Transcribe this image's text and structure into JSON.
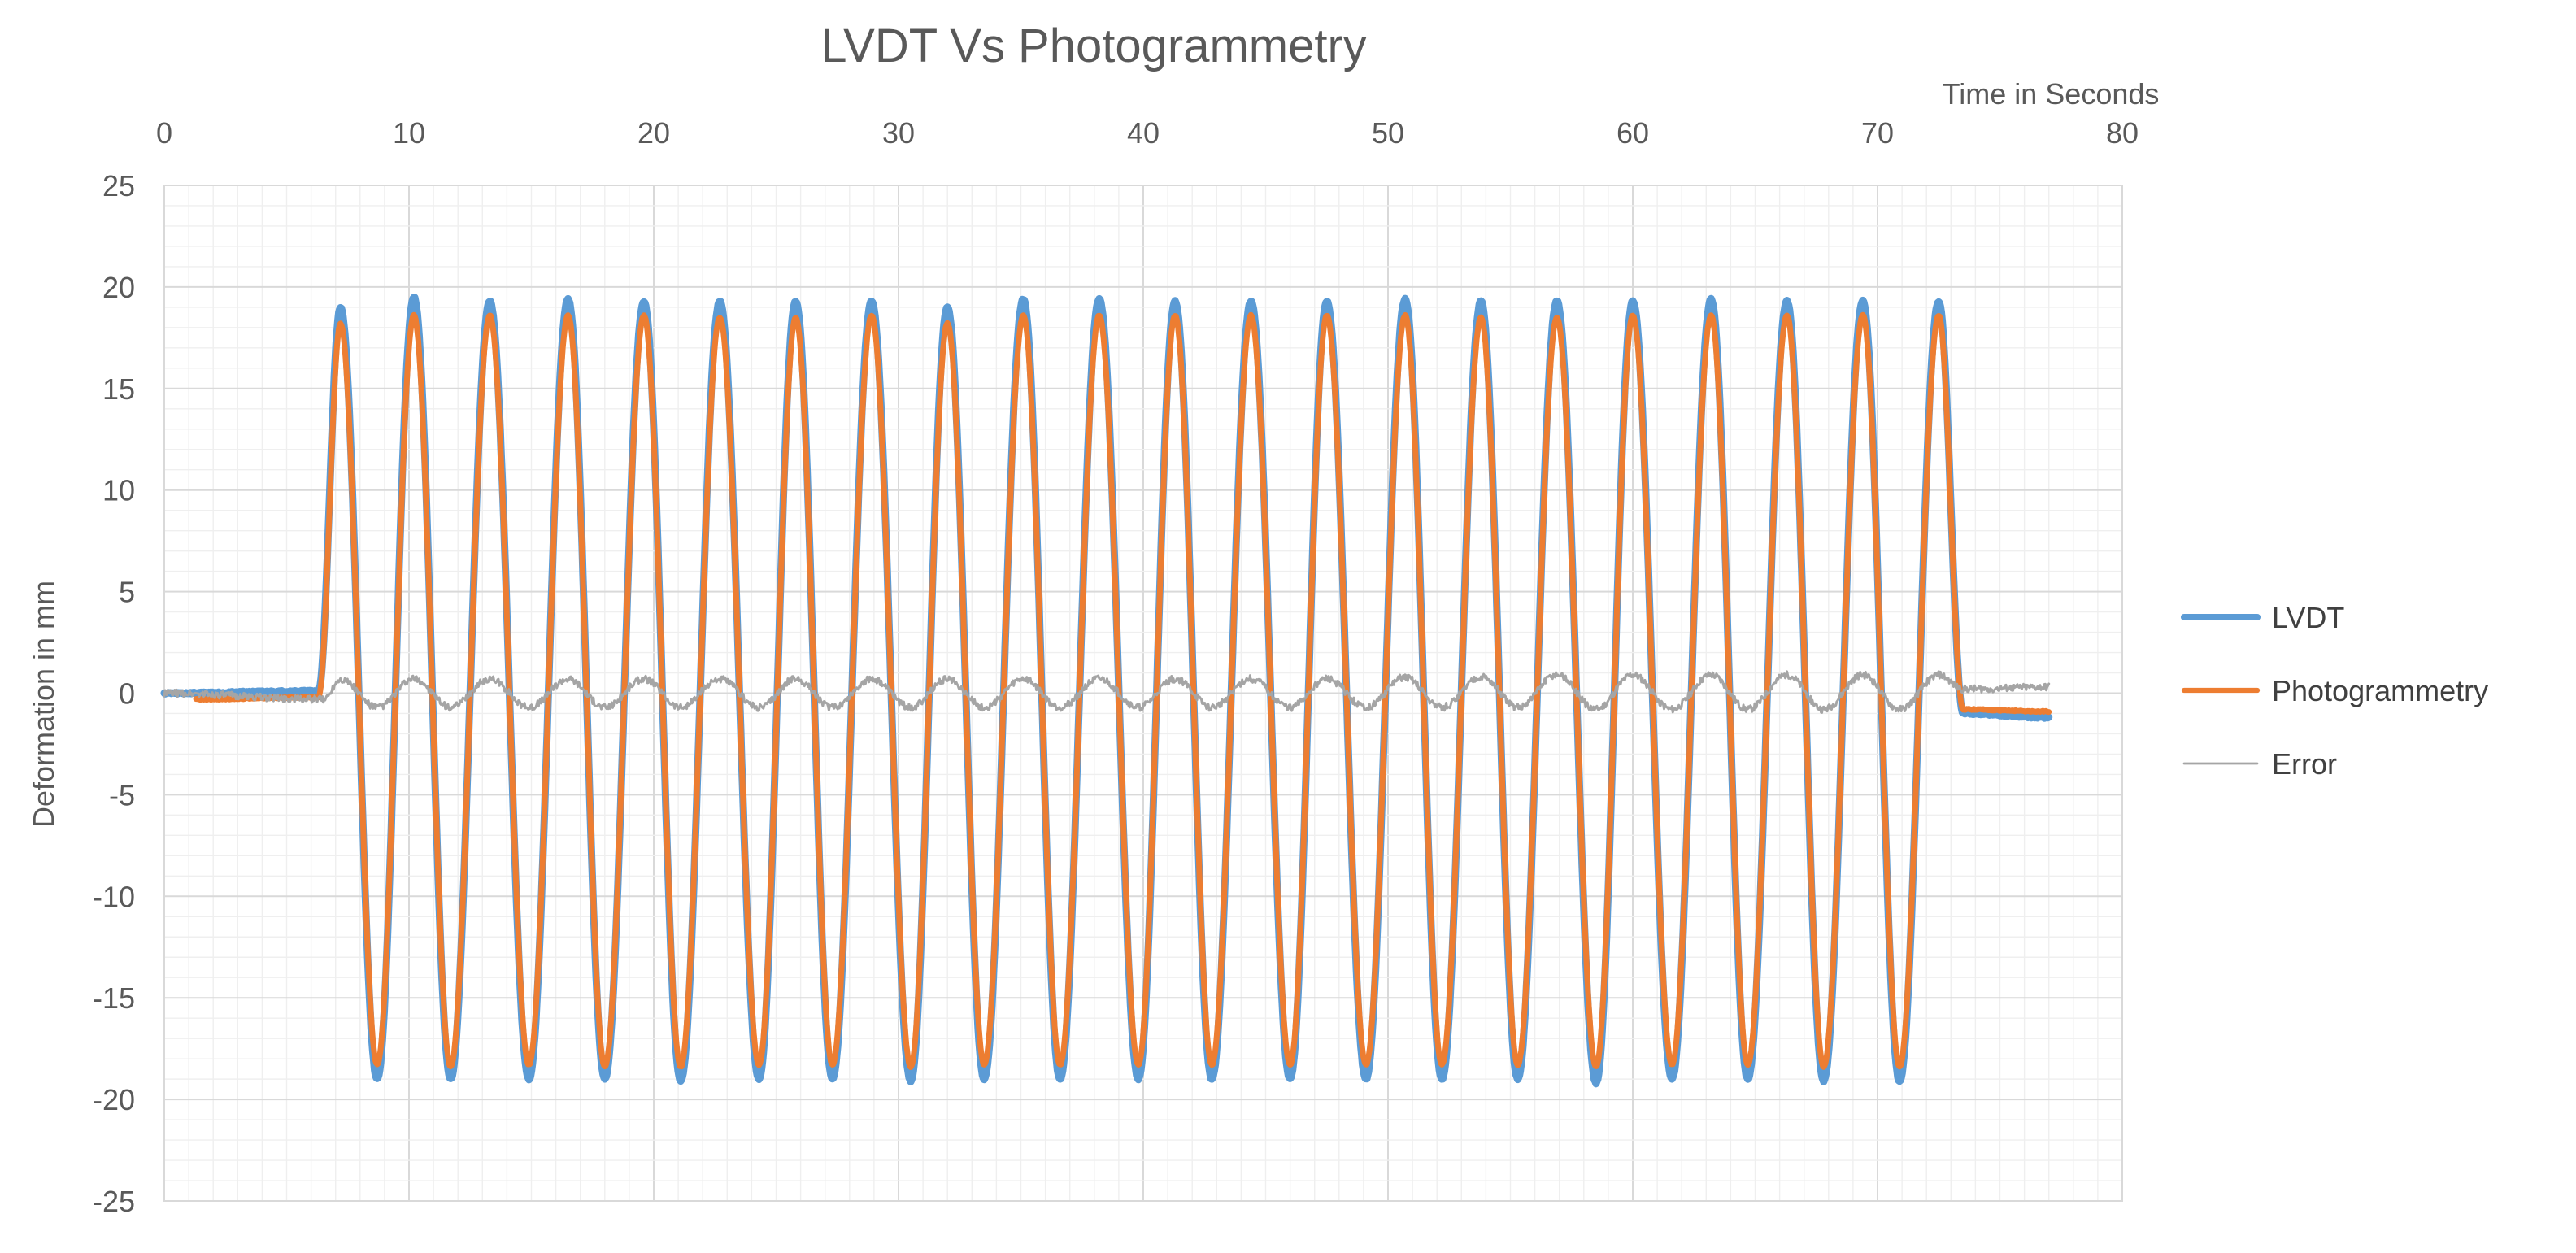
{
  "chart_data": {
    "type": "line",
    "title": "LVDT Vs Photogrammetry",
    "xlabel": "Time in Seconds",
    "ylabel": "Deformation in mm",
    "xlim": [
      0,
      80
    ],
    "ylim": [
      -25,
      25
    ],
    "x_ticks": [
      0,
      10,
      20,
      30,
      40,
      50,
      60,
      70,
      80
    ],
    "y_ticks": [
      25,
      20,
      15,
      10,
      5,
      0,
      -5,
      -10,
      -15,
      -20,
      -25
    ],
    "x_axis_position": "top",
    "grid": true,
    "minor_grid": true,
    "legend_position": "right",
    "series": [
      {
        "name": "LVDT",
        "color": "#5b9bd5",
        "description_points": {
          "x": [
            0,
            6.3,
            7.2,
            8.7,
            10.2,
            11.7,
            13.3,
            14.9,
            16.5,
            18.0,
            19.6,
            21.1,
            22.7,
            24.3,
            25.8,
            27.3,
            28.9,
            30.5,
            32.0,
            33.5,
            35.1,
            36.6,
            38.2,
            39.8,
            41.3,
            42.8,
            44.4,
            46.0,
            47.5,
            49.1,
            50.7,
            52.2,
            53.8,
            55.3,
            56.9,
            58.5,
            60.0,
            61.6,
            63.2,
            64.7,
            66.3,
            67.8,
            69.4,
            70.9,
            72.5,
            73.5,
            77.0
          ],
          "y": [
            0,
            0.1,
            19.0,
            -19.0,
            19.5,
            -19.0,
            19.3,
            -19.0,
            19.4,
            -19.0,
            19.3,
            -19.1,
            19.3,
            -19.0,
            19.3,
            -19.0,
            19.3,
            -19.1,
            19.0,
            -19.0,
            19.4,
            -19.0,
            19.4,
            -19.0,
            19.3,
            -19.0,
            19.3,
            -19.0,
            19.3,
            -19.0,
            19.4,
            -19.0,
            19.3,
            -19.0,
            19.3,
            -19.2,
            19.3,
            -19.0,
            19.4,
            -19.0,
            19.3,
            -19.1,
            19.3,
            -19.1,
            19.3,
            -1.0,
            -1.2
          ]
        }
      },
      {
        "name": "Photogrammetry",
        "color": "#ed7d31",
        "description_points": {
          "x": [
            1.3,
            6.3,
            7.2,
            8.7,
            10.2,
            11.7,
            13.3,
            14.9,
            16.5,
            18.0,
            19.6,
            21.1,
            22.7,
            24.3,
            25.8,
            27.3,
            28.9,
            30.5,
            32.0,
            33.5,
            35.1,
            36.6,
            38.2,
            39.8,
            41.3,
            42.8,
            44.4,
            46.0,
            47.5,
            49.1,
            50.7,
            52.2,
            53.8,
            55.3,
            56.9,
            58.5,
            60.0,
            61.6,
            63.2,
            64.7,
            66.3,
            67.8,
            69.4,
            70.9,
            72.5,
            73.5,
            77.0
          ],
          "y": [
            -0.3,
            -0.2,
            18.2,
            -18.3,
            18.6,
            -18.4,
            18.6,
            -18.3,
            18.6,
            -18.4,
            18.6,
            -18.4,
            18.5,
            -18.3,
            18.5,
            -18.3,
            18.6,
            -18.4,
            18.2,
            -18.3,
            18.6,
            -18.3,
            18.6,
            -18.3,
            18.6,
            -18.3,
            18.6,
            -18.3,
            18.6,
            -18.3,
            18.6,
            -18.3,
            18.5,
            -18.3,
            18.5,
            -18.4,
            18.6,
            -18.3,
            18.6,
            -18.3,
            18.6,
            -18.4,
            18.6,
            -18.4,
            18.6,
            -0.8,
            -0.9
          ]
        }
      },
      {
        "name": "Error",
        "color": "#a5a5a5",
        "description_points": {
          "x": [
            0,
            6.5,
            7.2,
            8.7,
            10.2,
            11.7,
            13.3,
            14.9,
            16.5,
            18.0,
            19.6,
            21.1,
            22.7,
            24.3,
            25.8,
            27.3,
            28.9,
            30.5,
            32.0,
            33.5,
            35.1,
            36.6,
            38.2,
            39.8,
            41.3,
            42.8,
            44.4,
            46.0,
            47.5,
            49.1,
            50.7,
            52.2,
            53.8,
            55.3,
            56.9,
            58.5,
            60.0,
            61.6,
            63.2,
            64.7,
            66.3,
            67.8,
            69.4,
            70.9,
            72.5,
            73.5,
            77.0
          ],
          "y": [
            0,
            -0.3,
            0.7,
            -0.7,
            0.7,
            -0.7,
            0.7,
            -0.7,
            0.7,
            -0.7,
            0.7,
            -0.7,
            0.7,
            -0.7,
            0.7,
            -0.7,
            0.7,
            -0.7,
            0.7,
            -0.7,
            0.7,
            -0.7,
            0.7,
            -0.7,
            0.7,
            -0.7,
            0.7,
            -0.7,
            0.7,
            -0.7,
            0.8,
            -0.7,
            0.8,
            -0.7,
            0.9,
            -0.8,
            0.9,
            -0.8,
            0.9,
            -0.8,
            0.9,
            -0.8,
            0.9,
            -0.8,
            0.9,
            0.2,
            0.3
          ]
        }
      }
    ]
  }
}
